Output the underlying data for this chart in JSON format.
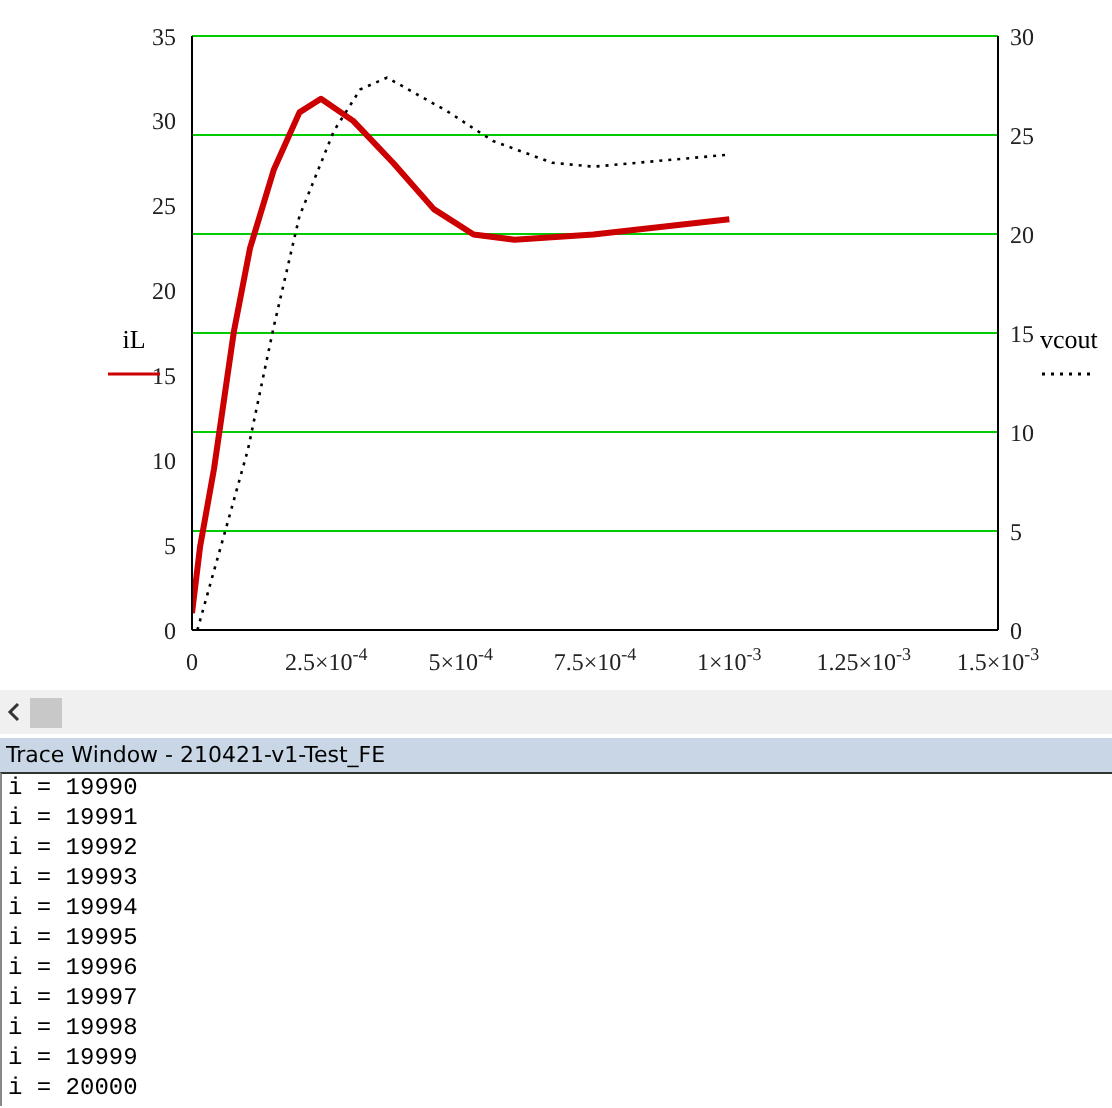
{
  "chart_data": {
    "type": "line",
    "xlabel": null,
    "ylabel": "iL",
    "y2label": "vcout",
    "x": [
      0,
      1.5e-05,
      4.1e-05,
      7.8e-05,
      0.000108,
      0.000152,
      0.0002,
      0.00024,
      0.0003,
      0.000375,
      0.00045,
      0.000524,
      0.0006,
      0.000747,
      0.001
    ],
    "series": [
      {
        "color": "#cc0000",
        "line_style": "solid",
        "values": [
          1,
          4.9,
          9.5,
          17.6,
          22.5,
          27.1,
          30.5,
          31.3,
          30,
          27.5,
          24.8,
          23.3,
          23,
          23.3,
          24.2
        ]
      },
      {
        "color": "#000000",
        "line_style": "dotted",
        "axis": "y2",
        "x": [
          1e-05,
          6.7e-05,
          0.000104,
          0.000152,
          0.0002,
          0.000264,
          0.000313,
          0.000363,
          0.000475,
          0.00056,
          0.00067,
          0.000747,
          0.000996
        ],
        "values": [
          0,
          5.5,
          9.1,
          15.3,
          20.9,
          25.2,
          27.3,
          27.9,
          26.2,
          24.7,
          23.6,
          23.4,
          24
        ]
      }
    ],
    "xlim": [
      0,
      0.0015
    ],
    "xticks": [
      0,
      {
        "value": 0.00025,
        "label": "2.5×10$^{-4}$"
      },
      {
        "value": 0.0005,
        "label": "5×10$^{-4}$"
      },
      {
        "value": 0.00075,
        "label": "7.5×10$^{-4}$"
      },
      {
        "value": 0.001,
        "label": "1×10$^{-3}$"
      },
      {
        "value": 0.00125,
        "label": "1.25×10$^{-3}$"
      },
      {
        "value": 0.0015,
        "label": "1.5×10$^{-3}$"
      }
    ],
    "ylim": [
      0,
      35
    ],
    "yticks": [
      0,
      5,
      10,
      15,
      20,
      25,
      30,
      35
    ],
    "y2lim": [
      0,
      30
    ],
    "y2ticks": [
      0,
      5,
      10,
      15,
      20,
      25,
      30
    ],
    "grid": true,
    "annotations": [
      "Trace Window - 210421-v1-Test_FE",
      "i = 19990",
      "i = 19991",
      "i = 19992",
      "i = 19993",
      "i = 19994",
      "i = 19995",
      "i = 19996",
      "i = 19997",
      "i = 19998",
      "i = 19999",
      "i = 20000"
    ]
  }
}
